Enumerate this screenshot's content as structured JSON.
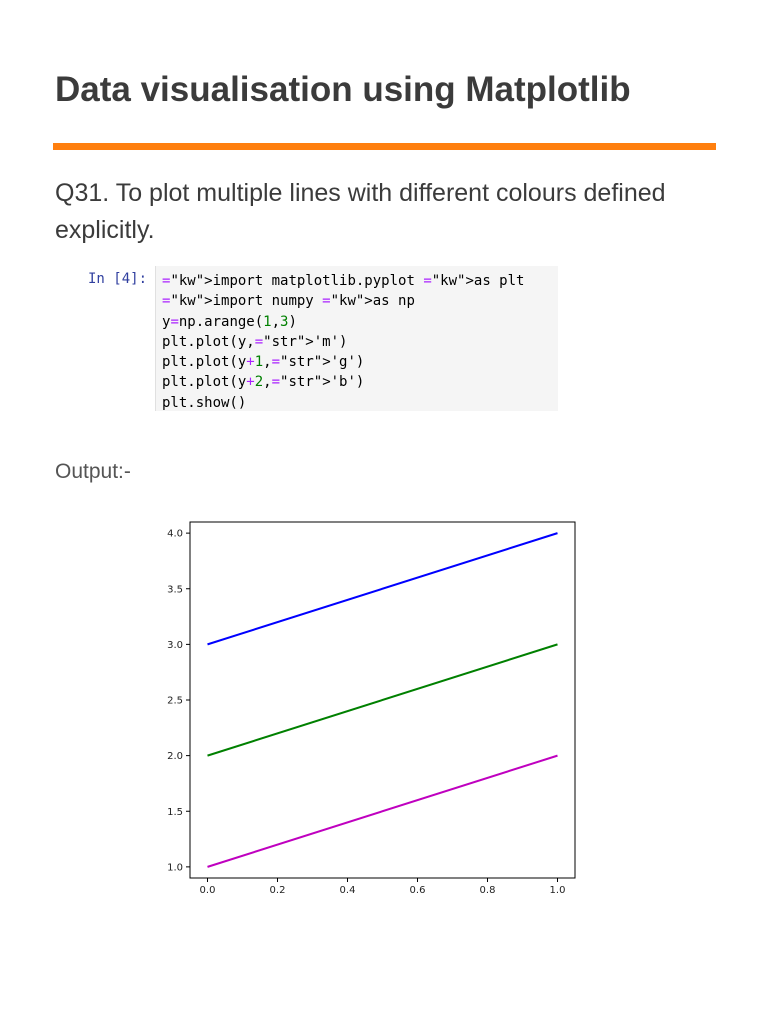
{
  "document": {
    "title": "Data visualisation using Matplotlib",
    "question": "Q31. To plot multiple lines with different colours defined explicitly.",
    "output_label": "Output:-"
  },
  "code_cell": {
    "prompt": "In [4]:",
    "lines": [
      "import matplotlib.pyplot as plt",
      "import numpy as np",
      "y=np.arange(1,3)",
      "plt.plot(y,'m')",
      "plt.plot(y+1,'g')",
      "plt.plot(y+2,'b')",
      "plt.show()"
    ]
  },
  "colors": {
    "accent_rule": "#ff7f0e"
  },
  "chart_data": {
    "type": "line",
    "x": [
      0.0,
      1.0
    ],
    "xlim": [
      -0.05,
      1.05
    ],
    "ylim": [
      0.9,
      4.1
    ],
    "xticks": [
      "0.0",
      "0.2",
      "0.4",
      "0.6",
      "0.8",
      "1.0"
    ],
    "yticks": [
      "1.0",
      "1.5",
      "2.0",
      "2.5",
      "3.0",
      "3.5",
      "4.0"
    ],
    "grid": false,
    "title": "",
    "xlabel": "",
    "ylabel": "",
    "series": [
      {
        "values": [
          1,
          2
        ],
        "color": "#bf00bf"
      },
      {
        "values": [
          2,
          3
        ],
        "color": "#008000"
      },
      {
        "values": [
          3,
          4
        ],
        "color": "#0000ff"
      }
    ]
  }
}
